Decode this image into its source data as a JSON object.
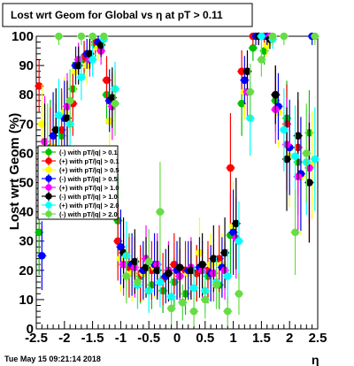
{
  "chart_data": {
    "type": "scatter",
    "title": "Lost wrt Geom for Global vs   η at pT > 0.11",
    "xlabel": "η",
    "ylabel": "Lost wrt Geom (%)",
    "xlim": [
      -2.5,
      2.5
    ],
    "ylim": [
      0,
      100
    ],
    "x_ticks": [
      "-2.5",
      "-2",
      "-1.5",
      "-1",
      "-0.5",
      "0",
      "0.5",
      "1",
      "1.5",
      "2",
      "2.5"
    ],
    "y_ticks": [
      "0",
      "10",
      "20",
      "30",
      "40",
      "50",
      "60",
      "70",
      "80",
      "90",
      "100"
    ],
    "grid": false,
    "legend_placement": "middle-left",
    "timestamp": "Tue May 15 09:21:14 2018",
    "series": [
      {
        "name": "(-) with pT/|q| > 0.1",
        "color": "#00c000",
        "marker": "circle",
        "x": [
          -2.45,
          -2.25,
          -2.05,
          -1.85,
          -1.65,
          -1.45,
          -1.25,
          -1.05,
          -0.85,
          -0.65,
          -0.45,
          -0.25,
          -0.05,
          0.15,
          0.35,
          0.55,
          0.75,
          0.95,
          1.15,
          1.35,
          1.55,
          1.75,
          1.95,
          2.15,
          2.35
        ],
        "y": [
          33,
          62,
          66,
          82,
          92,
          97,
          80,
          37,
          22,
          18,
          15,
          13,
          16,
          12,
          19,
          18,
          15,
          32,
          77,
          96,
          95,
          78,
          72,
          57,
          67
        ]
      },
      {
        "name": "(+) with pT/|q| > 0.1",
        "color": "#ff0000",
        "marker": "circle",
        "x": [
          -2.45,
          -2.25,
          -2.05,
          -1.85,
          -1.65,
          -1.45,
          -1.25,
          -1.05,
          -0.85,
          -0.65,
          -0.45,
          -0.25,
          -0.05,
          0.15,
          0.35,
          0.55,
          0.75,
          0.95,
          1.15,
          1.35,
          1.55,
          1.75,
          1.95,
          2.15,
          2.35
        ],
        "y": [
          83,
          58,
          68,
          77,
          93,
          98,
          85,
          30,
          21,
          19,
          20,
          17,
          22,
          20,
          19,
          20,
          24,
          55,
          88,
          100,
          100,
          80,
          70,
          62,
          50
        ]
      },
      {
        "name": "(+) with pT/|q| > 0.5",
        "color": "#ffff00",
        "marker": "circle",
        "x": [
          -2.4,
          -2.2,
          -2.0,
          -1.8,
          -1.6,
          -1.4,
          -1.2,
          -1.0,
          -0.8,
          -0.6,
          -0.4,
          -0.2,
          0.0,
          0.2,
          0.4,
          0.6,
          0.8,
          1.0,
          1.2,
          1.4,
          1.6,
          1.8,
          2.0,
          2.2,
          2.4
        ],
        "y": [
          70,
          62,
          74,
          88,
          90,
          96,
          71,
          24,
          19,
          19,
          21,
          18,
          20,
          19,
          26,
          22,
          22,
          35,
          81,
          100,
          97,
          74,
          59,
          52,
          56
        ]
      },
      {
        "name": "(-) with pT/|q| > 0.5",
        "color": "#0000ff",
        "marker": "circle",
        "x": [
          -2.4,
          -2.2,
          -2.0,
          -1.8,
          -1.6,
          -1.4,
          -1.2,
          -1.0,
          -0.8,
          -0.6,
          -0.4,
          -0.2,
          0.0,
          0.2,
          0.4,
          0.6,
          0.8,
          1.0,
          1.2,
          1.4,
          1.6,
          1.8,
          2.0,
          2.2,
          2.4
        ],
        "y": [
          25,
          66,
          72,
          90,
          94,
          98,
          78,
          28,
          22,
          20,
          22,
          18,
          20,
          20,
          21,
          19,
          21,
          33,
          85,
          100,
          100,
          76,
          62,
          53,
          100
        ]
      },
      {
        "name": "(+) with pT/|q| > 1.0",
        "color": "#ff00ff",
        "marker": "circle",
        "x": [
          -2.35,
          -2.15,
          -1.95,
          -1.75,
          -1.55,
          -1.35,
          -1.15,
          -0.95,
          -0.75,
          -0.55,
          -0.35,
          -0.15,
          0.05,
          0.25,
          0.45,
          0.65,
          0.85,
          1.05,
          1.25,
          1.45,
          1.65,
          1.75,
          1.95,
          2.15,
          2.35
        ],
        "y": [
          64,
          60,
          76,
          92,
          92,
          95,
          76,
          22,
          21,
          24,
          22,
          20,
          18,
          21,
          20,
          19,
          20,
          31,
          81,
          100,
          100,
          75,
          63,
          52,
          55
        ]
      },
      {
        "name": "(-) with pT/|q| > 1.0",
        "color": "#000000",
        "marker": "circle",
        "x": [
          -2.35,
          -2.15,
          -1.95,
          -1.75,
          -1.55,
          -1.35,
          -1.15,
          -0.95,
          -0.75,
          -0.55,
          -0.35,
          -0.15,
          0.05,
          0.25,
          0.45,
          0.65,
          0.85,
          1.05,
          1.25,
          1.45,
          1.65,
          1.75,
          1.95,
          2.15,
          2.35
        ],
        "y": [
          60,
          68,
          72,
          90,
          94,
          97,
          79,
          26,
          23,
          21,
          20,
          19,
          21,
          20,
          22,
          24,
          26,
          36,
          88,
          100,
          99,
          80,
          58,
          66,
          50
        ]
      },
      {
        "name": "(+) with pT/|q| > 2.0",
        "color": "#00ffff",
        "marker": "circle",
        "x": [
          -2.3,
          -2.1,
          -1.9,
          -1.7,
          -1.5,
          -1.3,
          -1.1,
          -0.9,
          -0.7,
          -0.5,
          -0.3,
          -0.1,
          0.1,
          0.3,
          0.5,
          0.7,
          0.9,
          1.1,
          1.3,
          1.5,
          1.7,
          1.9,
          2.1,
          2.3,
          2.45
        ],
        "y": [
          57,
          73,
          70,
          86,
          92,
          99,
          82,
          25,
          15,
          13,
          16,
          11,
          9,
          14,
          13,
          16,
          18,
          30,
          72,
          100,
          99,
          68,
          59,
          57,
          58
        ]
      },
      {
        "name": "(-) with pT/|q| > 2.0",
        "color": "#66dd44",
        "marker": "circle",
        "x": [
          -2.3,
          -2.1,
          -1.9,
          -1.7,
          -1.5,
          -1.3,
          -1.1,
          -0.9,
          -0.7,
          -0.5,
          -0.3,
          -0.1,
          0.1,
          0.3,
          0.5,
          0.7,
          0.9,
          1.1,
          1.3,
          1.5,
          1.7,
          1.9,
          2.1,
          2.3,
          2.45
        ],
        "y": [
          60,
          100,
          78,
          100,
          100,
          100,
          77,
          18,
          16,
          23,
          40,
          7,
          9,
          6,
          10,
          15,
          6,
          12,
          81,
          92,
          100,
          100,
          33,
          60,
          100
        ]
      }
    ]
  }
}
